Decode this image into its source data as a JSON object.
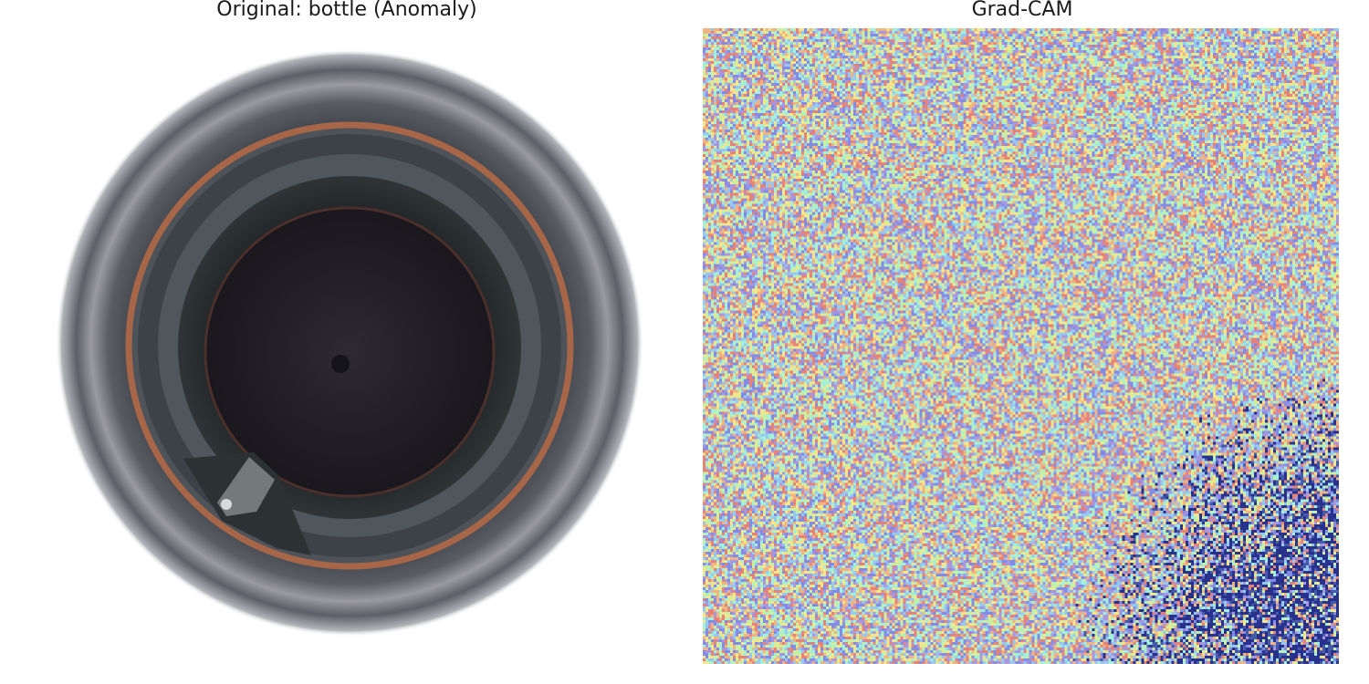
{
  "panels": {
    "original": {
      "title": "Original: bottle (Anomaly)",
      "image": "bottle-top-view-photo"
    },
    "gradcam": {
      "title": "Grad-CAM",
      "image": "grad-cam-heatmap-overlay"
    }
  },
  "colors": {
    "background": "#ffffff",
    "bottle_outer": "#3c3f47",
    "bottle_inner": "#1e1b22",
    "copper_ring": "#c0734a",
    "heatmap_hot": "#1a237e"
  }
}
